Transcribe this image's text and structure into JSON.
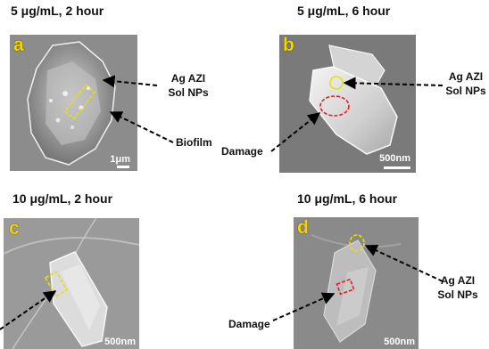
{
  "panels": [
    {
      "id": "a",
      "letter": "a",
      "title": "5 μg/mL, 2 hour",
      "scale": "1μm"
    },
    {
      "id": "b",
      "letter": "b",
      "title": "5 μg/mL, 6 hour",
      "scale": "500nm"
    },
    {
      "id": "c",
      "letter": "c",
      "title": "10 μg/mL, 2 hour",
      "scale": "500nm"
    },
    {
      "id": "d",
      "letter": "d",
      "title": "10 μg/mL, 6 hour",
      "scale": "500nm"
    }
  ],
  "labels": {
    "ag_azi_line1": "Ag AZI",
    "ag_azi_line2": "Sol NPs",
    "biofilm": "Biofilm",
    "damage": "Damage"
  },
  "colors": {
    "panel_letter": "#f2d400",
    "np_marker": "#e8e000",
    "damage_marker": "#e02020",
    "arrow": "#000000"
  }
}
